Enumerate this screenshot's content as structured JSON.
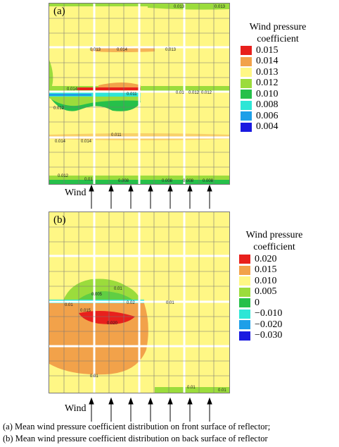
{
  "panel_a": {
    "label": "(a)",
    "contour_labels": [
      "0.013",
      "0.013",
      "0.013",
      "0.014",
      "0.013",
      "0.014",
      "0.012",
      "0.012",
      "0.012",
      "0.011",
      "0.014",
      "0.014",
      "0.012",
      "0.01",
      "0.008",
      "0.008",
      "0.008",
      "0.008",
      "0.01",
      "0.011"
    ]
  },
  "panel_b": {
    "label": "(b)",
    "contour_labels": [
      "0.01",
      "0.005",
      "0.01",
      "0.02",
      "0.01",
      "0.015",
      "0.020",
      "0.01",
      "0.01",
      "0.01"
    ]
  },
  "legend_a": {
    "title_line1": "Wind pressure",
    "title_line2": "coefficient",
    "items": [
      {
        "value": "0.015",
        "color": "#e8201c"
      },
      {
        "value": "0.014",
        "color": "#f2a24a"
      },
      {
        "value": "0.013",
        "color": "#fff785"
      },
      {
        "value": "0.012",
        "color": "#9bdc3c"
      },
      {
        "value": "0.010",
        "color": "#26c04a"
      },
      {
        "value": "0.008",
        "color": "#2ee6d6"
      },
      {
        "value": "0.006",
        "color": "#1e9fe8"
      },
      {
        "value": "0.004",
        "color": "#1a1ae0"
      }
    ]
  },
  "legend_b": {
    "title_line1": "Wind pressure",
    "title_line2": "coefficient",
    "items": [
      {
        "value": "0.020",
        "color": "#e8201c"
      },
      {
        "value": "0.015",
        "color": "#f2a24a"
      },
      {
        "value": "0.010",
        "color": "#fff785"
      },
      {
        "value": "0.005",
        "color": "#9bdc3c"
      },
      {
        "value": "0",
        "color": "#26c04a"
      },
      {
        "value": "−0.010",
        "color": "#2ee6d6"
      },
      {
        "value": "−0.020",
        "color": "#1e9fe8"
      },
      {
        "value": "−0.030",
        "color": "#1a1ae0"
      }
    ]
  },
  "wind_a": {
    "label": "Wind"
  },
  "wind_b": {
    "label": "Wind"
  },
  "caption": {
    "line1": "(a) Mean wind pressure coefficient distribution  on  front  surface  of  reflector;",
    "line2": "(b)  Mean  wind pressure coefficient distribution on back surface of reflector"
  }
}
